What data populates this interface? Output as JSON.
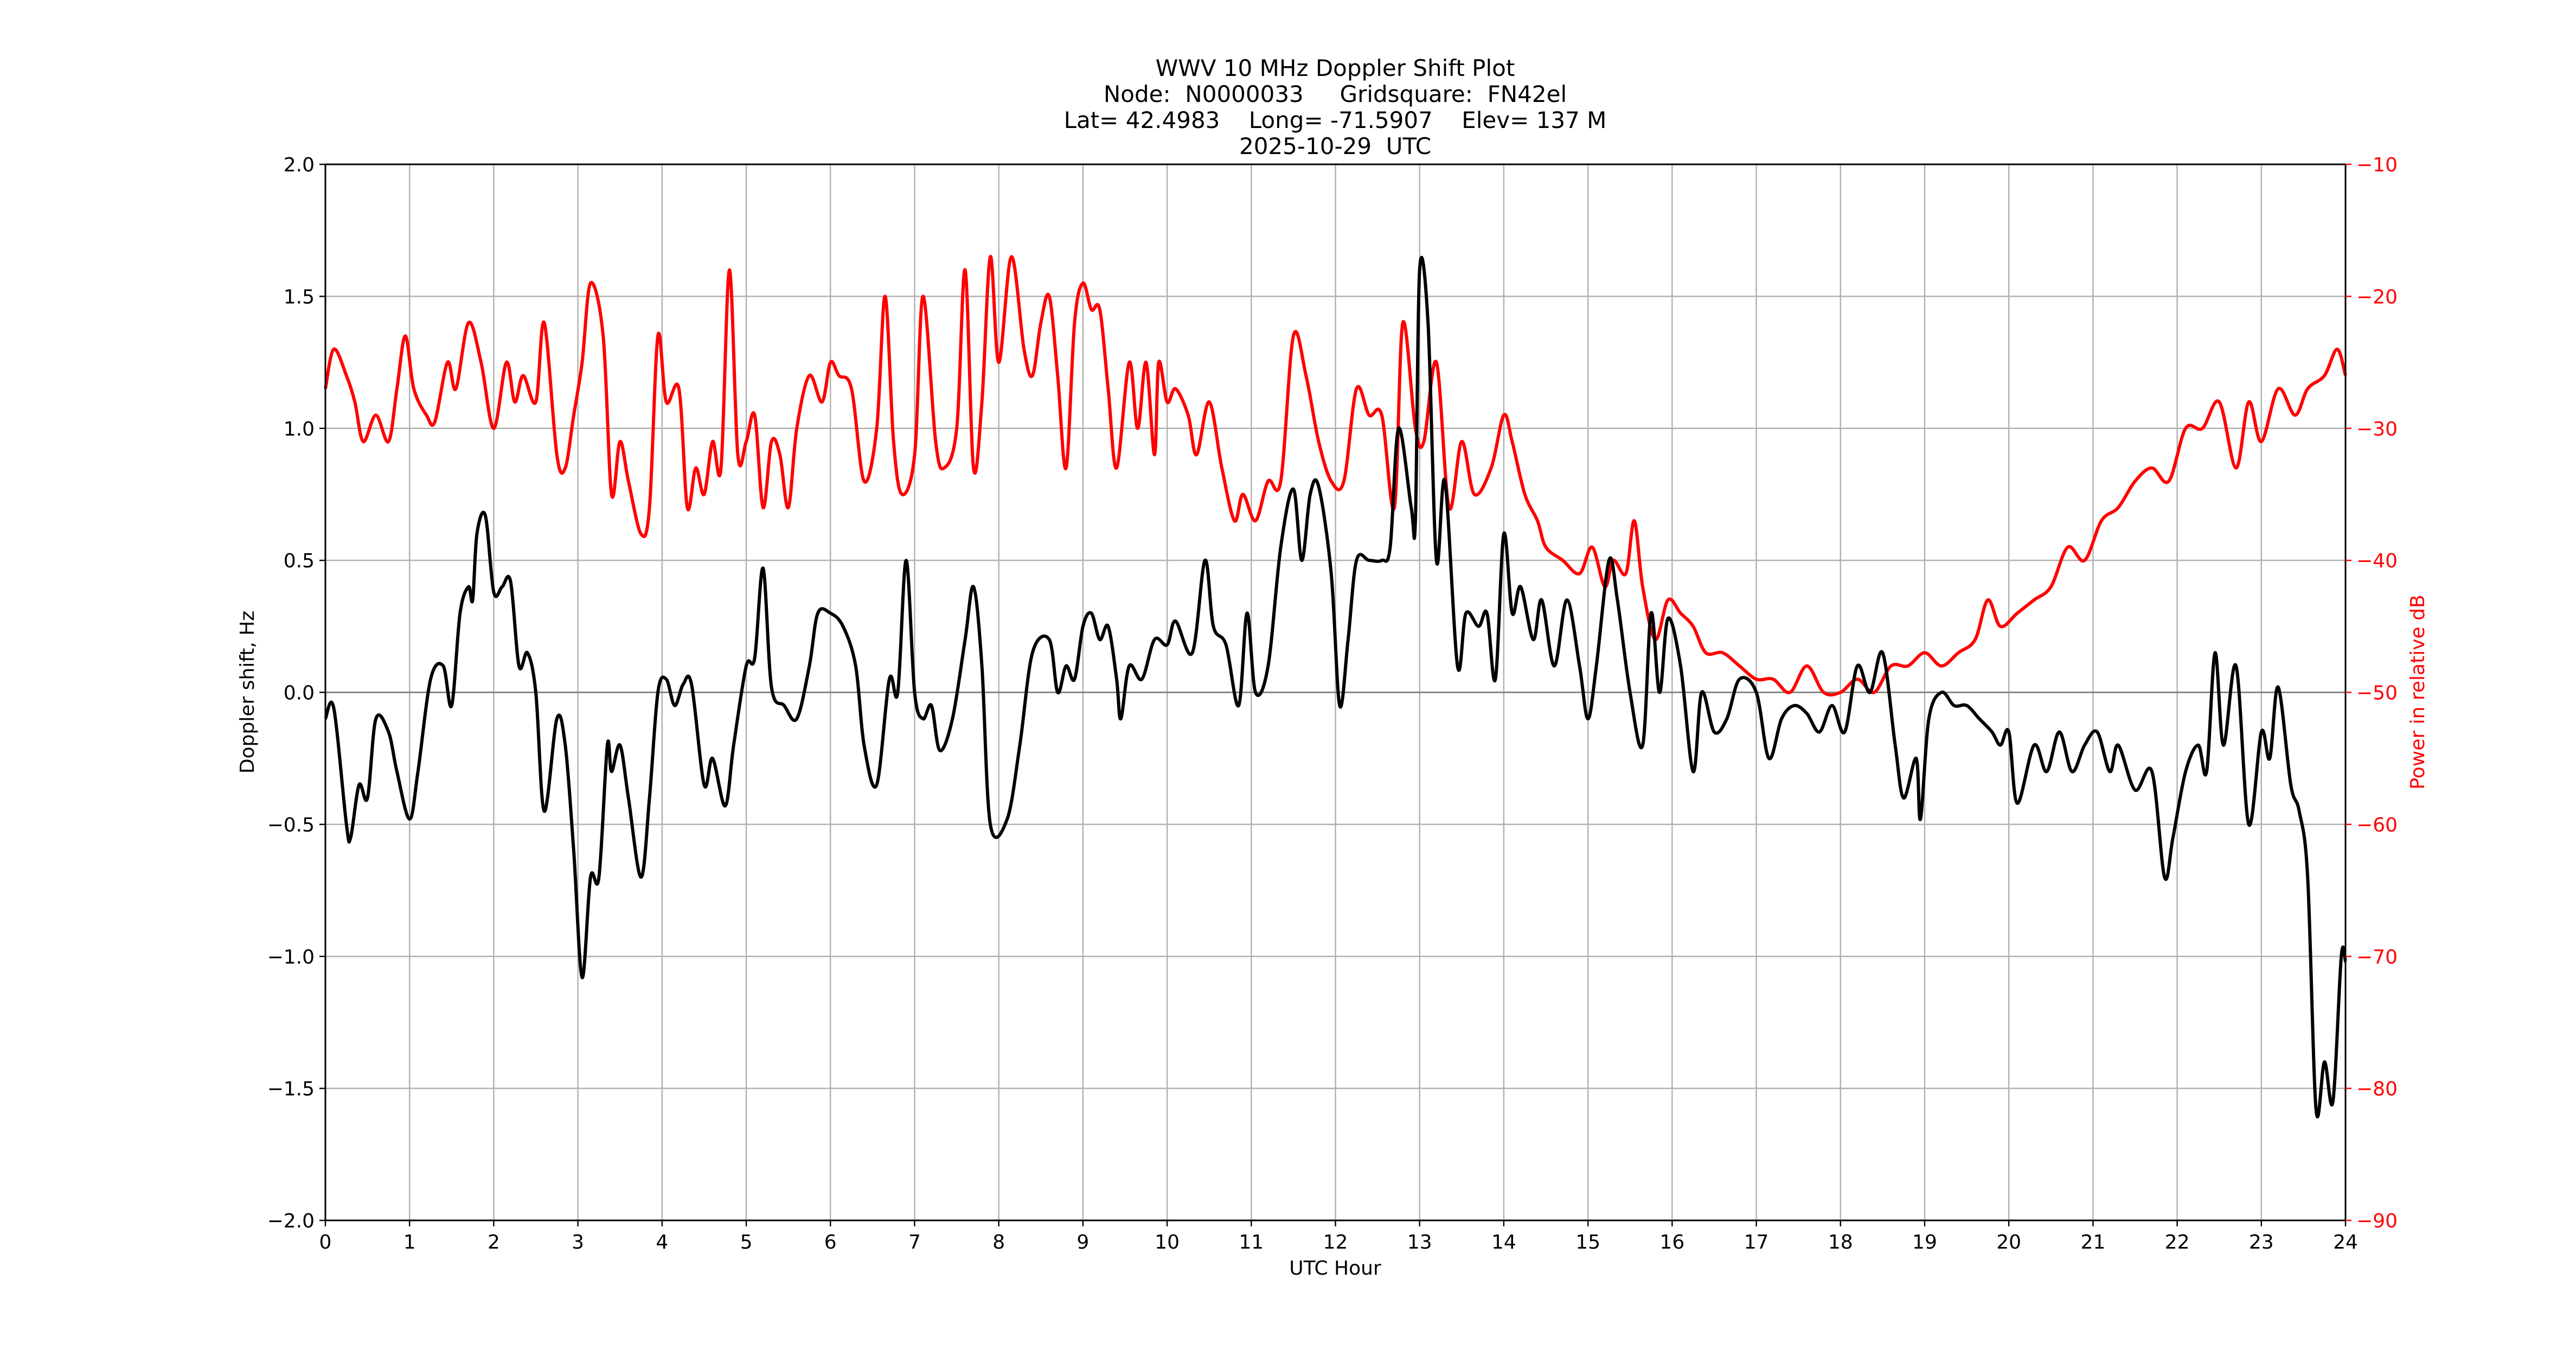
{
  "chart_data": {
    "type": "line",
    "title_lines": [
      "WWV 10 MHz Doppler Shift Plot",
      "Node:  N0000033     Gridsquare:  FN42el",
      "Lat= 42.4983    Long= -71.5907    Elev= 137 M",
      "2025-10-29  UTC"
    ],
    "xlabel": "UTC Hour",
    "ylabel": "Doppler shift, Hz",
    "y2label": "Power in relative dB",
    "xlim": [
      0,
      24
    ],
    "ylim": [
      -2.0,
      2.0
    ],
    "y2lim": [
      -90,
      -10
    ],
    "xticks": [
      "0",
      "1",
      "2",
      "3",
      "4",
      "5",
      "6",
      "7",
      "8",
      "9",
      "10",
      "11",
      "12",
      "13",
      "14",
      "15",
      "16",
      "17",
      "18",
      "19",
      "20",
      "21",
      "22",
      "23",
      "24"
    ],
    "yticks": [
      "2.0",
      "1.5",
      "1.0",
      "0.5",
      "0.0",
      "−0.5",
      "−1.0",
      "−1.5",
      "−2.0"
    ],
    "y2ticks": [
      "−10",
      "−20",
      "−30",
      "−40",
      "−50",
      "−60",
      "−70",
      "−80",
      "−90"
    ],
    "grid": true,
    "colors": {
      "doppler": "#000000",
      "power": "#ff0000"
    },
    "series": [
      {
        "axis": "left",
        "color": "#000000",
        "x": [
          0,
          0.1,
          0.25,
          0.3,
          0.4,
          0.5,
          0.6,
          0.75,
          0.85,
          1.0,
          1.1,
          1.25,
          1.4,
          1.5,
          1.6,
          1.7,
          1.75,
          1.8,
          1.9,
          2.0,
          2.1,
          2.2,
          2.3,
          2.4,
          2.5,
          2.6,
          2.75,
          2.85,
          2.95,
          3.05,
          3.15,
          3.25,
          3.35,
          3.4,
          3.5,
          3.6,
          3.75,
          3.85,
          3.95,
          4.05,
          4.15,
          4.25,
          4.35,
          4.5,
          4.6,
          4.75,
          4.85,
          5.0,
          5.1,
          5.2,
          5.3,
          5.45,
          5.6,
          5.75,
          5.85,
          6.0,
          6.15,
          6.3,
          6.4,
          6.55,
          6.7,
          6.8,
          6.9,
          7.0,
          7.1,
          7.2,
          7.3,
          7.45,
          7.6,
          7.7,
          7.8,
          7.9,
          8.1,
          8.25,
          8.4,
          8.6,
          8.7,
          8.8,
          8.9,
          9.0,
          9.1,
          9.2,
          9.3,
          9.4,
          9.45,
          9.55,
          9.7,
          9.85,
          10.0,
          10.1,
          10.3,
          10.45,
          10.55,
          10.7,
          10.85,
          10.95,
          11.05,
          11.2,
          11.35,
          11.5,
          11.6,
          11.7,
          11.8,
          11.95,
          12.05,
          12.15,
          12.25,
          12.4,
          12.55,
          12.65,
          12.75,
          12.9,
          12.95,
          13.0,
          13.1,
          13.2,
          13.3,
          13.45,
          13.55,
          13.7,
          13.8,
          13.9,
          14.0,
          14.1,
          14.2,
          14.35,
          14.45,
          14.6,
          14.75,
          14.9,
          15.0,
          15.1,
          15.25,
          15.35,
          15.5,
          15.65,
          15.75,
          15.85,
          15.95,
          16.1,
          16.25,
          16.35,
          16.5,
          16.65,
          16.8,
          17.0,
          17.15,
          17.3,
          17.45,
          17.6,
          17.75,
          17.9,
          18.05,
          18.2,
          18.35,
          18.5,
          18.65,
          18.75,
          18.9,
          18.95,
          19.05,
          19.2,
          19.35,
          19.5,
          19.65,
          19.8,
          19.9,
          20.0,
          20.1,
          20.3,
          20.45,
          20.6,
          20.75,
          20.9,
          21.05,
          21.2,
          21.3,
          21.5,
          21.7,
          21.85,
          21.95,
          22.1,
          22.25,
          22.35,
          22.45,
          22.55,
          22.7,
          22.85,
          23.0,
          23.1,
          23.2,
          23.35,
          23.45,
          23.55,
          23.65,
          23.75,
          23.85,
          23.95,
          24.0
        ],
        "values": [
          -0.1,
          -0.06,
          -0.5,
          -0.55,
          -0.35,
          -0.4,
          -0.1,
          -0.15,
          -0.3,
          -0.48,
          -0.3,
          0.05,
          0.1,
          -0.05,
          0.3,
          0.4,
          0.35,
          0.6,
          0.67,
          0.38,
          0.4,
          0.42,
          0.1,
          0.15,
          0,
          -0.45,
          -0.1,
          -0.2,
          -0.6,
          -1.08,
          -0.7,
          -0.7,
          -0.2,
          -0.3,
          -0.2,
          -0.4,
          -0.7,
          -0.4,
          0,
          0.05,
          -0.05,
          0.03,
          0.03,
          -0.35,
          -0.25,
          -0.43,
          -0.2,
          0.1,
          0.13,
          0.47,
          0.02,
          -0.05,
          -0.1,
          0.1,
          0.3,
          0.3,
          0.25,
          0.1,
          -0.2,
          -0.35,
          0.05,
          0,
          0.5,
          0,
          -0.1,
          -0.05,
          -0.22,
          -0.1,
          0.2,
          0.4,
          0.1,
          -0.5,
          -0.48,
          -0.2,
          0.15,
          0.2,
          0,
          0.1,
          0.05,
          0.25,
          0.3,
          0.2,
          0.25,
          0.05,
          -0.1,
          0.1,
          0.05,
          0.2,
          0.18,
          0.27,
          0.15,
          0.5,
          0.25,
          0.18,
          -0.05,
          0.3,
          0,
          0.1,
          0.55,
          0.77,
          0.5,
          0.75,
          0.78,
          0.45,
          -0.05,
          0.2,
          0.5,
          0.5,
          0.5,
          0.55,
          1.0,
          0.7,
          0.65,
          1.6,
          1.4,
          0.5,
          0.8,
          0.1,
          0.3,
          0.25,
          0.3,
          0.05,
          0.6,
          0.3,
          0.4,
          0.2,
          0.35,
          0.1,
          0.35,
          0.1,
          -0.1,
          0.1,
          0.5,
          0.35,
          0,
          -0.2,
          0.3,
          0,
          0.28,
          0.1,
          -0.3,
          0,
          -0.15,
          -0.1,
          0.05,
          0,
          -0.25,
          -0.1,
          -0.05,
          -0.08,
          -0.15,
          -0.05,
          -0.15,
          0.1,
          0,
          0.15,
          -0.2,
          -0.4,
          -0.25,
          -0.48,
          -0.1,
          0,
          -0.05,
          -0.05,
          -0.1,
          -0.15,
          -0.2,
          -0.15,
          -0.42,
          -0.2,
          -0.3,
          -0.15,
          -0.3,
          -0.2,
          -0.15,
          -0.3,
          -0.2,
          -0.37,
          -0.3,
          -0.7,
          -0.55,
          -0.3,
          -0.2,
          -0.3,
          0.15,
          -0.2,
          0.1,
          -0.5,
          -0.15,
          -0.25,
          0.02,
          -0.35,
          -0.45,
          -0.7,
          -1.58,
          -1.4,
          -1.55,
          -1.0,
          -1.02
        ]
      },
      {
        "axis": "right",
        "color": "#ff0000",
        "x": [
          0,
          0.1,
          0.25,
          0.35,
          0.45,
          0.6,
          0.75,
          0.85,
          0.95,
          1.05,
          1.2,
          1.3,
          1.45,
          1.55,
          1.7,
          1.85,
          2.0,
          2.15,
          2.25,
          2.35,
          2.5,
          2.6,
          2.75,
          2.85,
          2.95,
          3.05,
          3.15,
          3.3,
          3.4,
          3.5,
          3.6,
          3.75,
          3.85,
          3.95,
          4.05,
          4.2,
          4.3,
          4.4,
          4.5,
          4.6,
          4.7,
          4.8,
          4.9,
          5.0,
          5.1,
          5.2,
          5.3,
          5.4,
          5.5,
          5.6,
          5.75,
          5.9,
          6.0,
          6.1,
          6.25,
          6.4,
          6.55,
          6.65,
          6.75,
          6.85,
          7.0,
          7.1,
          7.25,
          7.35,
          7.5,
          7.6,
          7.7,
          7.8,
          7.9,
          8.0,
          8.15,
          8.3,
          8.4,
          8.5,
          8.6,
          8.7,
          8.8,
          8.9,
          9.0,
          9.1,
          9.2,
          9.3,
          9.4,
          9.55,
          9.65,
          9.75,
          9.85,
          9.9,
          10.0,
          10.1,
          10.25,
          10.35,
          10.5,
          10.65,
          10.8,
          10.9,
          11.05,
          11.2,
          11.35,
          11.5,
          11.65,
          11.8,
          11.95,
          12.1,
          12.25,
          12.4,
          12.55,
          12.7,
          12.8,
          12.95,
          13.05,
          13.2,
          13.35,
          13.5,
          13.65,
          13.85,
          14.0,
          14.1,
          14.25,
          14.4,
          14.5,
          14.7,
          14.9,
          15.05,
          15.2,
          15.3,
          15.45,
          15.55,
          15.65,
          15.8,
          15.95,
          16.1,
          16.25,
          16.4,
          16.6,
          16.8,
          17.0,
          17.2,
          17.4,
          17.6,
          17.8,
          18.0,
          18.2,
          18.4,
          18.6,
          18.8,
          19.0,
          19.2,
          19.4,
          19.6,
          19.75,
          19.9,
          20.1,
          20.3,
          20.5,
          20.7,
          20.9,
          21.1,
          21.3,
          21.5,
          21.7,
          21.9,
          22.1,
          22.3,
          22.5,
          22.7,
          22.85,
          23.0,
          23.2,
          23.4,
          23.55,
          23.75,
          23.9,
          24.0
        ],
        "values": [
          -27,
          -24,
          -26,
          -28,
          -31,
          -29,
          -31,
          -27,
          -23,
          -27,
          -29,
          -29.5,
          -25,
          -27,
          -22,
          -25,
          -30,
          -25,
          -28,
          -26,
          -28,
          -22,
          -32,
          -33,
          -29,
          -25,
          -19,
          -23,
          -35,
          -31,
          -34,
          -38,
          -36,
          -23,
          -28,
          -27,
          -36,
          -33,
          -35,
          -31,
          -33,
          -18,
          -32,
          -31,
          -29,
          -36,
          -31,
          -32,
          -36,
          -30,
          -26,
          -28,
          -25,
          -26,
          -27,
          -34,
          -30,
          -20,
          -31,
          -35,
          -32,
          -20,
          -31,
          -33,
          -30,
          -18,
          -33,
          -28,
          -17,
          -25,
          -17,
          -24,
          -26,
          -22,
          -20,
          -26,
          -33,
          -22,
          -19,
          -21,
          -21,
          -27,
          -33,
          -25,
          -30,
          -25,
          -32,
          -25,
          -28,
          -27,
          -29,
          -32,
          -28,
          -33,
          -37,
          -35,
          -37,
          -34,
          -34,
          -23,
          -26,
          -31,
          -34,
          -34,
          -27,
          -29,
          -29,
          -36,
          -22,
          -30,
          -31,
          -25,
          -36,
          -31,
          -35,
          -33,
          -29,
          -31,
          -35,
          -37,
          -39,
          -40,
          -41,
          -39,
          -42,
          -40,
          -41,
          -37,
          -42,
          -46,
          -43,
          -44,
          -45,
          -47,
          -47,
          -48,
          -49,
          -49,
          -50,
          -48,
          -50,
          -50,
          -49,
          -50,
          -48,
          -48,
          -47,
          -48,
          -47,
          -46,
          -43,
          -45,
          -44,
          -43,
          -42,
          -39,
          -40,
          -37,
          -36,
          -34,
          -33,
          -34,
          -30,
          -30,
          -28,
          -33,
          -28,
          -31,
          -27,
          -29,
          -27,
          -26,
          -24,
          -26
        ]
      }
    ]
  }
}
